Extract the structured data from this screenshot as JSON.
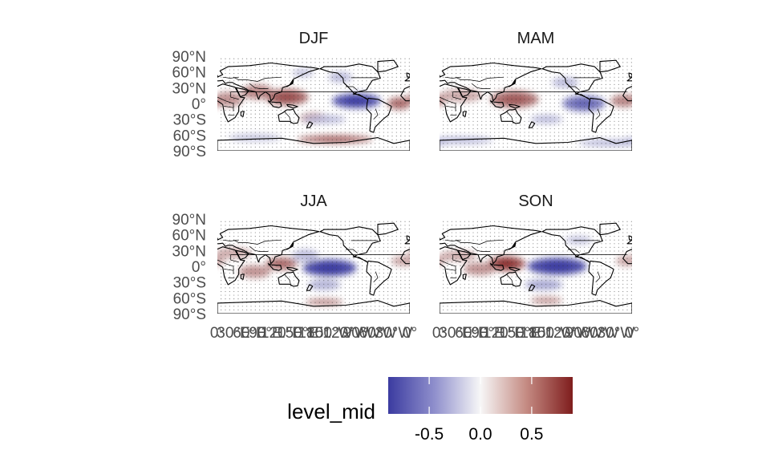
{
  "figure": {
    "panels": [
      {
        "title": "DJF",
        "field": [
          {
            "lon": 130,
            "lat": 12,
            "value": 0.65,
            "slon": 40,
            "slat": 15
          },
          {
            "lon": 75,
            "lat": 22,
            "value": 0.5,
            "slon": 30,
            "slat": 14
          },
          {
            "lon": 20,
            "lat": 8,
            "value": 0.45,
            "slon": 28,
            "slat": 14
          },
          {
            "lon": 180,
            "lat": -28,
            "value": 0.45,
            "slon": 25,
            "slat": 10
          },
          {
            "lon": 340,
            "lat": 0,
            "value": 0.55,
            "slon": 22,
            "slat": 12
          },
          {
            "lon": 260,
            "lat": 5,
            "value": -0.85,
            "slon": 45,
            "slat": 14
          },
          {
            "lon": 230,
            "lat": 50,
            "value": -0.3,
            "slon": 22,
            "slat": 10
          },
          {
            "lon": 160,
            "lat": 58,
            "value": -0.25,
            "slon": 20,
            "slat": 8
          },
          {
            "lon": 200,
            "lat": -30,
            "value": -0.3,
            "slon": 40,
            "slat": 8
          },
          {
            "lon": 220,
            "lat": -68,
            "value": 0.55,
            "slon": 70,
            "slat": 8
          },
          {
            "lon": 70,
            "lat": -65,
            "value": -0.25,
            "slon": 50,
            "slat": 7
          }
        ]
      },
      {
        "title": "MAM",
        "field": [
          {
            "lon": 140,
            "lat": 8,
            "value": 0.6,
            "slon": 45,
            "slat": 16
          },
          {
            "lon": 40,
            "lat": 15,
            "value": 0.35,
            "slon": 40,
            "slat": 12
          },
          {
            "lon": 345,
            "lat": 5,
            "value": 0.5,
            "slon": 25,
            "slat": 12
          },
          {
            "lon": 270,
            "lat": 0,
            "value": -0.65,
            "slon": 40,
            "slat": 15
          },
          {
            "lon": 235,
            "lat": 40,
            "value": -0.3,
            "slon": 25,
            "slat": 10
          },
          {
            "lon": 200,
            "lat": -30,
            "value": -0.3,
            "slon": 30,
            "slat": 8
          },
          {
            "lon": 320,
            "lat": -75,
            "value": -0.35,
            "slon": 60,
            "slat": 6
          },
          {
            "lon": 40,
            "lat": -70,
            "value": -0.3,
            "slon": 60,
            "slat": 7
          }
        ]
      },
      {
        "title": "JJA",
        "field": [
          {
            "lon": 120,
            "lat": 5,
            "value": 0.55,
            "slon": 30,
            "slat": 12
          },
          {
            "lon": 70,
            "lat": -10,
            "value": 0.45,
            "slon": 30,
            "slat": 12
          },
          {
            "lon": 30,
            "lat": 25,
            "value": 0.35,
            "slon": 35,
            "slat": 10
          },
          {
            "lon": 210,
            "lat": -3,
            "value": -0.9,
            "slon": 50,
            "slat": 16
          },
          {
            "lon": 165,
            "lat": 20,
            "value": -0.3,
            "slon": 25,
            "slat": 12
          },
          {
            "lon": 200,
            "lat": -35,
            "value": -0.35,
            "slon": 30,
            "slat": 10
          },
          {
            "lon": 350,
            "lat": 10,
            "value": 0.35,
            "slon": 25,
            "slat": 10
          },
          {
            "lon": 200,
            "lat": -68,
            "value": 0.5,
            "slon": 35,
            "slat": 6
          }
        ]
      },
      {
        "title": "SON",
        "field": [
          {
            "lon": 125,
            "lat": 5,
            "value": 0.75,
            "slon": 35,
            "slat": 14
          },
          {
            "lon": 75,
            "lat": -5,
            "value": 0.45,
            "slon": 30,
            "slat": 12
          },
          {
            "lon": 35,
            "lat": 20,
            "value": 0.35,
            "slon": 35,
            "slat": 10
          },
          {
            "lon": 220,
            "lat": 0,
            "value": -0.9,
            "slon": 55,
            "slat": 16
          },
          {
            "lon": 195,
            "lat": -35,
            "value": -0.4,
            "slon": 35,
            "slat": 10
          },
          {
            "lon": 350,
            "lat": 10,
            "value": 0.35,
            "slon": 20,
            "slat": 10
          },
          {
            "lon": 200,
            "lat": -65,
            "value": 0.4,
            "slon": 30,
            "slat": 7
          },
          {
            "lon": 260,
            "lat": 50,
            "value": -0.25,
            "slon": 25,
            "slat": 8
          }
        ]
      }
    ],
    "lat_labels": [
      "90°N",
      "60°N",
      "30°N",
      "0°",
      "30°S",
      "60°S",
      "90°S"
    ],
    "lat_values": [
      90,
      60,
      30,
      0,
      -30,
      -60,
      -90
    ],
    "lon_labels": [
      "0°",
      "30°E",
      "60°E",
      "90°E",
      "120°E",
      "150°E",
      "180°",
      "150°W",
      "120°W",
      "90°W",
      "60°W",
      "30°W",
      "0°"
    ],
    "lon_values": [
      0,
      30,
      60,
      90,
      120,
      150,
      180,
      210,
      240,
      270,
      300,
      330,
      360
    ]
  },
  "legend": {
    "title": "level_mid",
    "ticks": [
      "-0.5",
      "0.0",
      "0.5"
    ],
    "tick_values": [
      -0.5,
      0.0,
      0.5
    ],
    "range": [
      -0.9,
      0.9
    ],
    "colors": {
      "low": "#3b3ba0",
      "mid": "#f5f5f5",
      "high": "#7f1d1d"
    }
  }
}
